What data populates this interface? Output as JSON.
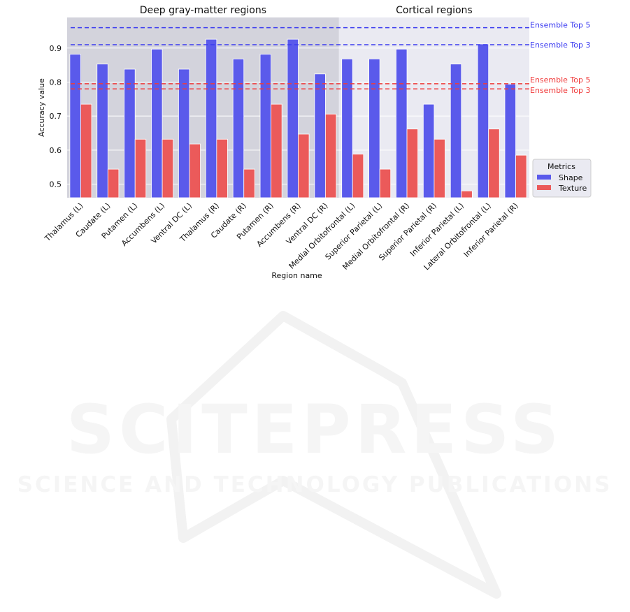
{
  "chart_data": {
    "type": "bar",
    "group_labels": [
      "Deep gray-matter regions",
      "Cortical regions"
    ],
    "categories": [
      "Thalamus (L)",
      "Caudate (L)",
      "Putamen (L)",
      "Accumbens (L)",
      "Ventral DC (L)",
      "Thalamus (R)",
      "Caudate (R)",
      "Putamen (R)",
      "Accumbens (R)",
      "Ventral DC (R)",
      "Medial Orbitofrontal (L)",
      "Superior Parietal (L)",
      "Medial Orbitofrontal (R)",
      "Superior Parietal (R)",
      "Inferior Parietal (L)",
      "Lateral Orbitofrontal (L)",
      "Inferior Parietal (R)"
    ],
    "deep_count": 10,
    "series": [
      {
        "name": "Shape",
        "color": "#5a5aeb",
        "values": [
          0.882,
          0.853,
          0.838,
          0.897,
          0.838,
          0.926,
          0.868,
          0.882,
          0.926,
          0.824,
          0.868,
          0.868,
          0.897,
          0.735,
          0.853,
          0.912,
          0.794
        ]
      },
      {
        "name": "Texture",
        "color": "#eb5a5a",
        "values": [
          0.735,
          0.544,
          0.632,
          0.632,
          0.618,
          0.632,
          0.544,
          0.735,
          0.647,
          0.706,
          0.588,
          0.544,
          0.662,
          0.632,
          0.48,
          0.662,
          0.585
        ]
      }
    ],
    "reference_lines": [
      {
        "label": "Ensemble Top 5",
        "value": 0.96,
        "color": "#3a3af0"
      },
      {
        "label": "Ensemble Top 3",
        "value": 0.91,
        "color": "#3a3af0"
      },
      {
        "label": "Ensemble Top 5",
        "value": 0.795,
        "color": "#f03a3a"
      },
      {
        "label": "Ensemble Top 3",
        "value": 0.78,
        "color": "#f03a3a"
      }
    ],
    "xlabel": "Region name",
    "ylabel": "Accuracy value",
    "ylim": [
      0.46,
      0.99
    ],
    "yticks": [
      "0.5",
      "0.6",
      "0.7",
      "0.8",
      "0.9"
    ],
    "grid": true,
    "legend": {
      "title": "Metrics",
      "position": "right"
    },
    "colors": {
      "deep_background": "#d3d3dc",
      "cortical_background": "#eaeaf2",
      "grid": "#ffffff"
    }
  },
  "watermark": {
    "main": "SCITEPRESS",
    "sub": "SCIENCE AND TECHNOLOGY PUBLICATIONS"
  }
}
